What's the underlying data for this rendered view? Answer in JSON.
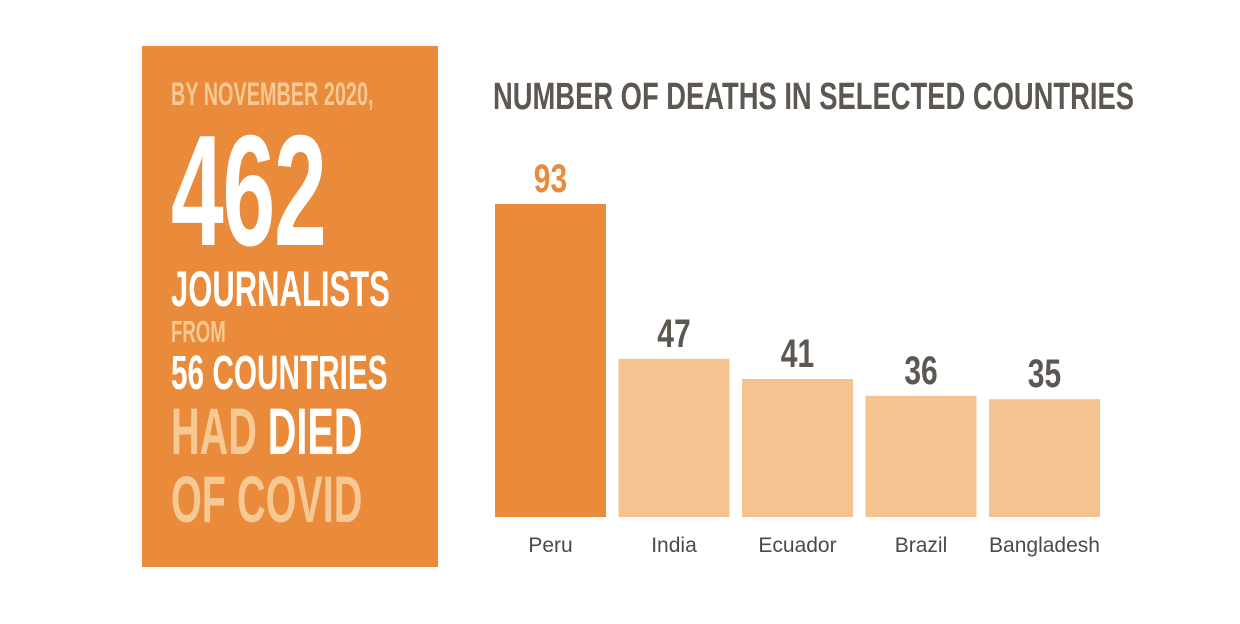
{
  "panel": {
    "intro": "BY NOVEMBER 2020,",
    "count": "462",
    "subject": "JOURNALISTS",
    "from": "FROM",
    "countries": "56 COUNTRIES",
    "had": "HAD",
    "died": "DIED",
    "of_covid": "OF COVID",
    "colors": {
      "background": "#e98b3a",
      "light_text": "#f6c894",
      "white_text": "#ffffff"
    }
  },
  "chart_data": {
    "type": "bar",
    "title": "NUMBER OF DEATHS IN SELECTED COUNTRIES",
    "categories": [
      "Peru",
      "India",
      "Ecuador",
      "Brazil",
      "Bangladesh"
    ],
    "values": [
      93,
      47,
      41,
      36,
      35
    ],
    "data_labels": [
      "93",
      "47",
      "41",
      "36",
      "35"
    ],
    "ylim": [
      0,
      93
    ],
    "grid": false,
    "legend": "none",
    "colors": {
      "highlight_bar": "#e98b3a",
      "bar": "#f4c38f",
      "highlight_label": "#e98b3a",
      "label": "#5c5851",
      "title": "#5c5851"
    }
  }
}
